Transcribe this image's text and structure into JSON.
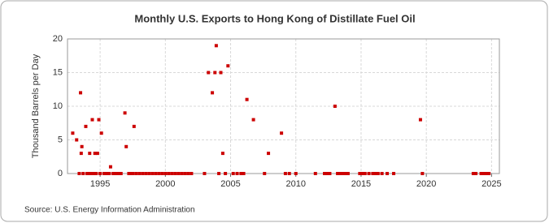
{
  "chart_data": {
    "type": "scatter",
    "title": "Monthly U.S. Exports to Hong Kong of Distillate Fuel Oil",
    "y_label": "Thousand Barrels per Day",
    "source": "Source: U.S. Energy Information Administration",
    "grid": true,
    "xlim": [
      1992.5,
      2025.6
    ],
    "ylim": [
      0,
      20
    ],
    "xticks": [
      1995,
      2000,
      2005,
      2010,
      2015,
      2020,
      2025
    ],
    "yticks": [
      0,
      5,
      10,
      15,
      20
    ],
    "series": [
      {
        "color": "#cc0000",
        "x": [
          1992.9,
          1993.2,
          1993.5,
          1993.6,
          1993.55,
          1993.9,
          1994.2,
          1994.4,
          1994.6,
          1994.8,
          1994.9,
          1995.1,
          1995.8,
          1996.9,
          1997.0,
          1997.6,
          2003.3,
          2003.6,
          2003.8,
          2003.9,
          2004.25,
          2004.4,
          2004.8,
          2006.25,
          2006.75,
          2007.9,
          2008.9,
          2013.0,
          2019.55,
          1993.4,
          1993.7,
          1994.0,
          1994.1,
          1994.3,
          1994.5,
          1994.7,
          1995.0,
          1995.3,
          1995.5,
          1995.7,
          1996.0,
          1996.2,
          1996.4,
          1996.6,
          1997.2,
          1997.4,
          1997.5,
          1997.75,
          1998.0,
          1998.25,
          1998.5,
          1998.75,
          1999.0,
          1999.25,
          1999.5,
          1999.75,
          2000.0,
          2000.25,
          2000.5,
          2000.75,
          2001.0,
          2001.25,
          2001.5,
          2001.75,
          2002.0,
          2003.0,
          2004.1,
          2004.6,
          2005.2,
          2005.5,
          2005.8,
          2006.0,
          2007.6,
          2009.2,
          2009.5,
          2010.0,
          2011.5,
          2012.2,
          2012.4,
          2012.6,
          2013.2,
          2013.4,
          2013.6,
          2013.8,
          2014.0,
          2014.9,
          2015.1,
          2015.3,
          2015.6,
          2015.9,
          2016.1,
          2016.3,
          2016.6,
          2017.0,
          2017.5,
          2019.7,
          2023.6,
          2023.8,
          2024.2,
          2024.4,
          2024.6,
          2024.8
        ],
        "values": [
          6,
          5,
          12,
          4,
          3,
          7,
          3,
          8,
          3,
          3,
          8,
          6,
          1,
          9,
          4,
          7,
          15,
          12,
          15,
          19,
          15,
          3,
          16,
          11,
          8,
          3,
          6,
          10,
          8,
          0,
          0,
          0,
          0,
          0,
          0,
          0,
          0,
          0,
          0,
          0,
          0,
          0,
          0,
          0,
          0,
          0,
          0,
          0,
          0,
          0,
          0,
          0,
          0,
          0,
          0,
          0,
          0,
          0,
          0,
          0,
          0,
          0,
          0,
          0,
          0,
          0,
          0,
          0,
          0,
          0,
          0,
          0,
          0,
          0,
          0,
          0,
          0,
          0,
          0,
          0,
          0,
          0,
          0,
          0,
          0,
          0,
          0,
          0,
          0,
          0,
          0,
          0,
          0,
          0,
          0,
          0,
          0,
          0,
          0,
          0,
          0,
          0
        ]
      }
    ]
  }
}
